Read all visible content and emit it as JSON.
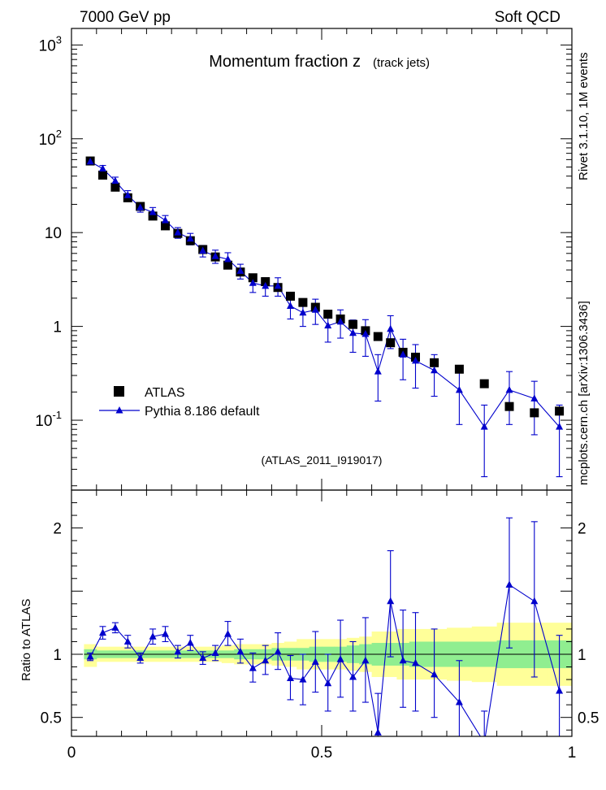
{
  "header": {
    "left": "7000 GeV pp",
    "right": "Soft QCD"
  },
  "side_labels": {
    "rivet": "Rivet 3.1.10,  1M events",
    "site": "mcplots.cern.ch [arXiv:1306.3436]"
  },
  "chart_data": [
    {
      "type": "scatter",
      "title": "Momentum fraction z",
      "subtitle": "(track jets)",
      "analysis_tag": "(ATLAS_2011_I919017)",
      "yscale": "log",
      "xlim": [
        0,
        1
      ],
      "ylim": [
        0.018,
        1500
      ],
      "y_tick_labels": [
        "10^3",
        "10^2",
        "10",
        "1",
        "10^-1"
      ],
      "y_tick_values": [
        1000,
        100,
        10,
        1,
        0.1
      ],
      "legend_position": "bottom-left",
      "series": [
        {
          "name": "ATLAS",
          "marker": "square",
          "color": "#000000",
          "x": [
            0.0375,
            0.0625,
            0.0875,
            0.1125,
            0.1375,
            0.1625,
            0.1875,
            0.2125,
            0.2375,
            0.2625,
            0.2875,
            0.3125,
            0.3375,
            0.3625,
            0.3875,
            0.4125,
            0.4375,
            0.4625,
            0.4875,
            0.5125,
            0.5375,
            0.5625,
            0.5875,
            0.6125,
            0.6375,
            0.6625,
            0.6875,
            0.725,
            0.775,
            0.825,
            0.875,
            0.925,
            0.975
          ],
          "y": [
            58,
            41,
            30.5,
            23.5,
            19,
            15,
            11.8,
            9.8,
            8.2,
            6.6,
            5.5,
            4.5,
            3.8,
            3.3,
            3.0,
            2.6,
            2.1,
            1.8,
            1.6,
            1.35,
            1.2,
            1.05,
            0.9,
            0.78,
            0.67,
            0.53,
            0.47,
            0.41,
            0.35,
            0.245,
            0.14,
            0.12,
            0.125
          ]
        },
        {
          "name": "Pythia 8.186 default",
          "marker": "triangle",
          "color": "#0000cc",
          "x": [
            0.0375,
            0.0625,
            0.0875,
            0.1125,
            0.1375,
            0.1625,
            0.1875,
            0.2125,
            0.2375,
            0.2625,
            0.2875,
            0.3125,
            0.3375,
            0.3625,
            0.3875,
            0.4125,
            0.4375,
            0.4625,
            0.4875,
            0.5125,
            0.5375,
            0.5625,
            0.5875,
            0.6125,
            0.6375,
            0.6625,
            0.6875,
            0.725,
            0.775,
            0.825,
            0.875,
            0.925,
            0.975
          ],
          "y": [
            57,
            48,
            35.5,
            25,
            18.5,
            16.5,
            13.5,
            10,
            8.6,
            6.4,
            5.6,
            5.2,
            3.9,
            2.9,
            2.7,
            2.7,
            1.65,
            1.4,
            1.5,
            1.02,
            1.12,
            0.85,
            0.83,
            0.33,
            0.94,
            0.5,
            0.43,
            0.34,
            0.21,
            0.085,
            0.21,
            0.17,
            0.085
          ],
          "y_low": [
            54,
            44,
            32,
            22,
            16.5,
            14.5,
            11.8,
            8.7,
            7.4,
            5.5,
            4.7,
            4.3,
            3.2,
            2.3,
            2.1,
            2.1,
            1.2,
            1.0,
            1.05,
            0.68,
            0.75,
            0.53,
            0.48,
            0.16,
            0.58,
            0.27,
            0.22,
            0.18,
            0.09,
            0.025,
            0.09,
            0.07,
            0.025
          ],
          "y_high": [
            60,
            52,
            39,
            28,
            20.5,
            18.5,
            15.2,
            11.3,
            9.8,
            7.3,
            6.5,
            6.1,
            4.6,
            3.5,
            3.3,
            3.3,
            2.1,
            1.8,
            1.95,
            1.36,
            1.5,
            1.17,
            1.18,
            0.5,
            1.3,
            0.73,
            0.64,
            0.5,
            0.33,
            0.145,
            0.33,
            0.26,
            0.145
          ]
        }
      ]
    },
    {
      "type": "scatter",
      "ylabel": "Ratio to ATLAS",
      "xlim": [
        0,
        1
      ],
      "ylim": [
        0.35,
        2.3
      ],
      "x_tick_labels": [
        "0",
        "0.5",
        "1"
      ],
      "x_tick_values": [
        0,
        0.5,
        1
      ],
      "y_tick_labels": [
        "2",
        "1",
        "0.5"
      ],
      "y_tick_values": [
        2,
        1,
        0.5
      ],
      "reference_line": 1,
      "bands": {
        "green_color": "#90ee90",
        "yellow_color": "#ffff99",
        "bin_edges": [
          0.025,
          0.05,
          0.075,
          0.1,
          0.125,
          0.15,
          0.175,
          0.2,
          0.225,
          0.25,
          0.275,
          0.3,
          0.325,
          0.35,
          0.375,
          0.4,
          0.425,
          0.45,
          0.475,
          0.5,
          0.525,
          0.55,
          0.575,
          0.6,
          0.625,
          0.65,
          0.675,
          0.7,
          0.75,
          0.8,
          0.85,
          0.9,
          0.95,
          1.0
        ],
        "green_low": [
          0.96,
          0.97,
          0.97,
          0.97,
          0.97,
          0.97,
          0.97,
          0.97,
          0.97,
          0.97,
          0.97,
          0.97,
          0.96,
          0.96,
          0.96,
          0.95,
          0.95,
          0.95,
          0.94,
          0.94,
          0.94,
          0.93,
          0.92,
          0.91,
          0.91,
          0.91,
          0.9,
          0.9,
          0.9,
          0.9,
          0.89,
          0.89,
          0.89
        ],
        "green_high": [
          1.04,
          1.03,
          1.03,
          1.03,
          1.03,
          1.03,
          1.03,
          1.03,
          1.03,
          1.03,
          1.03,
          1.03,
          1.04,
          1.04,
          1.04,
          1.05,
          1.05,
          1.05,
          1.06,
          1.06,
          1.06,
          1.07,
          1.08,
          1.09,
          1.09,
          1.09,
          1.1,
          1.1,
          1.1,
          1.1,
          1.11,
          1.11,
          1.11
        ],
        "yellow_low": [
          0.9,
          0.94,
          0.94,
          0.94,
          0.94,
          0.94,
          0.94,
          0.94,
          0.94,
          0.94,
          0.94,
          0.93,
          0.92,
          0.92,
          0.92,
          0.91,
          0.9,
          0.88,
          0.88,
          0.88,
          0.88,
          0.87,
          0.86,
          0.82,
          0.82,
          0.8,
          0.8,
          0.8,
          0.79,
          0.78,
          0.75,
          0.75,
          0.75
        ],
        "yellow_high": [
          1.08,
          1.06,
          1.06,
          1.06,
          1.06,
          1.06,
          1.06,
          1.06,
          1.06,
          1.06,
          1.06,
          1.07,
          1.08,
          1.08,
          1.08,
          1.09,
          1.1,
          1.12,
          1.12,
          1.12,
          1.12,
          1.13,
          1.14,
          1.18,
          1.18,
          1.2,
          1.2,
          1.2,
          1.21,
          1.22,
          1.25,
          1.25,
          1.25
        ]
      },
      "series": [
        {
          "name": "Pythia 8.186 default",
          "marker": "triangle",
          "color": "#0000cc",
          "x": [
            0.0375,
            0.0625,
            0.0875,
            0.1125,
            0.1375,
            0.1625,
            0.1875,
            0.2125,
            0.2375,
            0.2625,
            0.2875,
            0.3125,
            0.3375,
            0.3625,
            0.3875,
            0.4125,
            0.4375,
            0.4625,
            0.4875,
            0.5125,
            0.5375,
            0.5625,
            0.5875,
            0.6125,
            0.6375,
            0.6625,
            0.6875,
            0.725,
            0.775,
            0.825,
            0.875,
            0.925,
            0.975
          ],
          "y": [
            0.98,
            1.17,
            1.21,
            1.1,
            0.97,
            1.14,
            1.16,
            1.02,
            1.09,
            0.97,
            1.01,
            1.16,
            1.02,
            0.89,
            0.95,
            1.02,
            0.81,
            0.8,
            0.94,
            0.77,
            0.96,
            0.82,
            0.95,
            0.38,
            1.42,
            0.95,
            0.93,
            0.84,
            0.62,
            0.3,
            1.55,
            1.42,
            0.71
          ],
          "y_low": [
            0.95,
            1.12,
            1.17,
            1.05,
            0.93,
            1.08,
            1.1,
            0.97,
            1.03,
            0.92,
            0.95,
            1.07,
            0.93,
            0.78,
            0.84,
            0.88,
            0.64,
            0.6,
            0.7,
            0.55,
            0.66,
            0.55,
            0.62,
            0.18,
            0.98,
            0.58,
            0.55,
            0.5,
            0.3,
            0.1,
            1.05,
            0.82,
            0.28
          ],
          "y_high": [
            1.01,
            1.22,
            1.25,
            1.15,
            1.01,
            1.2,
            1.22,
            1.07,
            1.15,
            1.02,
            1.07,
            1.26,
            1.12,
            1.01,
            1.07,
            1.17,
            0.99,
            1.0,
            1.18,
            1.0,
            1.27,
            1.1,
            1.29,
            0.69,
            1.82,
            1.35,
            1.33,
            1.2,
            0.95,
            0.55,
            2.08,
            2.05,
            1.15
          ]
        }
      ]
    }
  ]
}
